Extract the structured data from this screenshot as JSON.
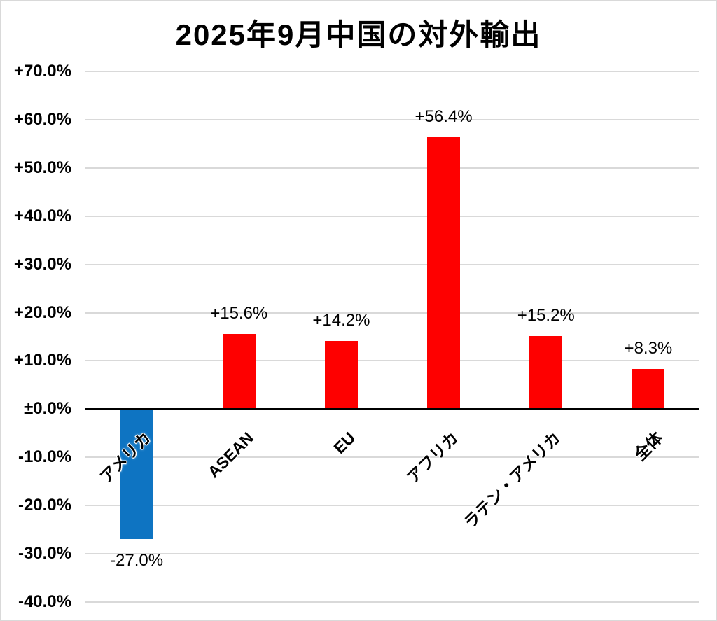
{
  "page": {
    "background": "#ffffff",
    "border_color": "#d9d9d9"
  },
  "chart_data": {
    "type": "bar",
    "title": "2025年9月中国の対外輸出",
    "categories": [
      "アメリカ",
      "ASEAN",
      "EU",
      "アフリカ",
      "ラテン・アメリカ",
      "全体"
    ],
    "values": [
      -27.0,
      15.6,
      14.2,
      56.4,
      15.2,
      8.3
    ],
    "data_labels": [
      "-27.0%",
      "+15.6%",
      "+14.2%",
      "+56.4%",
      "+15.2%",
      "+8.3%"
    ],
    "bar_colors": [
      "#0e74c2",
      "#fe0000",
      "#fe0000",
      "#fe0000",
      "#fe0000",
      "#fe0000"
    ],
    "xlabel": "",
    "ylabel": "",
    "ylim": [
      -40,
      70
    ],
    "ytick_step": 10,
    "ytick_labels": [
      "+70.0%",
      "+60.0%",
      "+50.0%",
      "+40.0%",
      "+30.0%",
      "+20.0%",
      "+10.0%",
      "±0.0%",
      "-10.0%",
      "-20.0%",
      "-30.0%",
      "-40.0%"
    ],
    "grid": true,
    "gridline_color": "#d9d9d9",
    "zero_line_color": "#000000",
    "legend": "none"
  }
}
